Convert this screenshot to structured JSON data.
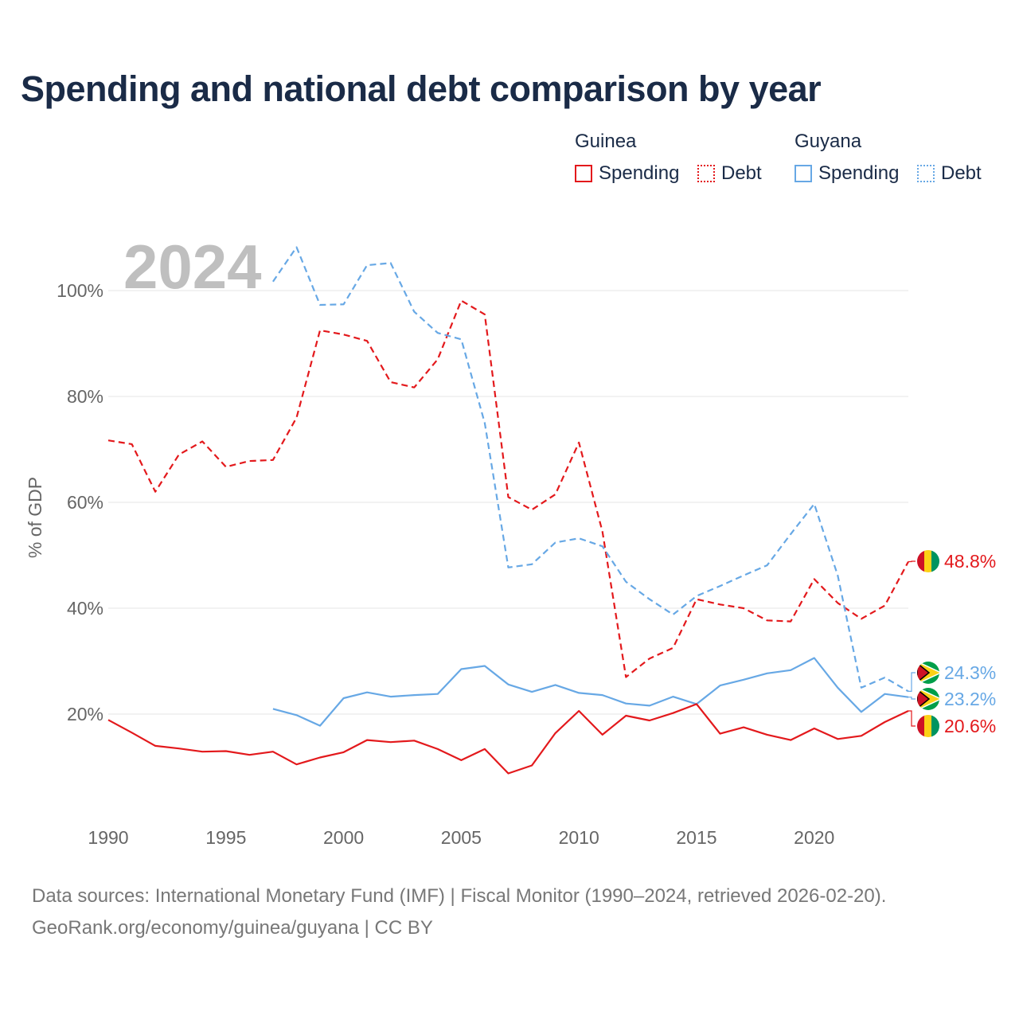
{
  "title": "Spending and national debt comparison by year",
  "legend": {
    "groups": [
      {
        "name": "Guinea",
        "color": "#e3191c",
        "items": [
          "Spending",
          "Debt"
        ]
      },
      {
        "name": "Guyana",
        "color": "#67a8e5",
        "items": [
          "Spending",
          "Debt"
        ]
      }
    ]
  },
  "year_watermark": "2024",
  "footer": {
    "line1": "Data sources: International Monetary Fund (IMF) | Fiscal Monitor (1990–2024, retrieved 2026-02-20).",
    "line2": "GeoRank.org/economy/guinea/guyana | CC BY"
  },
  "chart_data": {
    "type": "line",
    "title": "Spending and national debt comparison by year",
    "xlabel": "",
    "ylabel": "% of GDP",
    "xlim": [
      1990,
      2024
    ],
    "ylim": [
      0,
      110
    ],
    "x_ticks": [
      1990,
      1995,
      2000,
      2005,
      2010,
      2015,
      2020
    ],
    "x_tick_labels": [
      "1990",
      "1995",
      "2000",
      "2005",
      "2010",
      "2015",
      "2020"
    ],
    "y_ticks": [
      20,
      40,
      60,
      80,
      100
    ],
    "y_tick_labels": [
      "20%",
      "40%",
      "60%",
      "80%",
      "100%"
    ],
    "grid": true,
    "series": [
      {
        "name": "Guinea Debt",
        "country": "Guinea",
        "metric": "Debt",
        "color": "#e3191c",
        "dashed": true,
        "end_label": "48.8%",
        "points": [
          [
            1990,
            71.7
          ],
          [
            1991,
            71.0
          ],
          [
            1992,
            62.0
          ],
          [
            1993,
            69.0
          ],
          [
            1994,
            71.5
          ],
          [
            1995,
            66.7
          ],
          [
            1996,
            67.8
          ],
          [
            1997,
            68.0
          ],
          [
            1998,
            76.0
          ],
          [
            1999,
            92.5
          ],
          [
            2000,
            91.7
          ],
          [
            2001,
            90.5
          ],
          [
            2002,
            82.7
          ],
          [
            2003,
            81.7
          ],
          [
            2004,
            87.0
          ],
          [
            2005,
            98.1
          ],
          [
            2006,
            95.5
          ],
          [
            2007,
            61.0
          ],
          [
            2008,
            58.6
          ],
          [
            2009,
            61.5
          ],
          [
            2010,
            71.3
          ],
          [
            2011,
            54.5
          ],
          [
            2012,
            27.0
          ],
          [
            2013,
            30.5
          ],
          [
            2014,
            32.5
          ],
          [
            2015,
            41.7
          ],
          [
            2016,
            40.7
          ],
          [
            2017,
            40.0
          ],
          [
            2018,
            37.7
          ],
          [
            2019,
            37.5
          ],
          [
            2020,
            45.5
          ],
          [
            2021,
            41.0
          ],
          [
            2022,
            38.0
          ],
          [
            2023,
            40.5
          ],
          [
            2024,
            48.8
          ]
        ]
      },
      {
        "name": "Guyana Debt",
        "country": "Guyana",
        "metric": "Debt",
        "color": "#67a8e5",
        "dashed": true,
        "end_label": "24.3%",
        "points": [
          [
            1997,
            101.7
          ],
          [
            1998,
            108.2
          ],
          [
            1999,
            97.3
          ],
          [
            2000,
            97.4
          ],
          [
            2001,
            104.8
          ],
          [
            2002,
            105.2
          ],
          [
            2003,
            96.0
          ],
          [
            2004,
            92.0
          ],
          [
            2005,
            90.8
          ],
          [
            2006,
            75.0
          ],
          [
            2007,
            47.7
          ],
          [
            2008,
            48.3
          ],
          [
            2009,
            52.4
          ],
          [
            2010,
            53.2
          ],
          [
            2011,
            51.7
          ],
          [
            2012,
            45.0
          ],
          [
            2013,
            41.7
          ],
          [
            2014,
            38.8
          ],
          [
            2015,
            42.3
          ],
          [
            2016,
            44.2
          ],
          [
            2017,
            46.2
          ],
          [
            2018,
            48.1
          ],
          [
            2019,
            54.0
          ],
          [
            2020,
            59.7
          ],
          [
            2021,
            46.2
          ],
          [
            2022,
            25.0
          ],
          [
            2023,
            26.9
          ],
          [
            2024,
            24.3
          ]
        ]
      },
      {
        "name": "Guyana Spending",
        "country": "Guyana",
        "metric": "Spending",
        "color": "#67a8e5",
        "dashed": false,
        "end_label": "23.2%",
        "points": [
          [
            1997,
            21.0
          ],
          [
            1998,
            19.8
          ],
          [
            1999,
            17.8
          ],
          [
            2000,
            23.0
          ],
          [
            2001,
            24.1
          ],
          [
            2002,
            23.3
          ],
          [
            2003,
            23.6
          ],
          [
            2004,
            23.8
          ],
          [
            2005,
            28.5
          ],
          [
            2006,
            29.1
          ],
          [
            2007,
            25.6
          ],
          [
            2008,
            24.2
          ],
          [
            2009,
            25.5
          ],
          [
            2010,
            24.0
          ],
          [
            2011,
            23.6
          ],
          [
            2012,
            22.0
          ],
          [
            2013,
            21.6
          ],
          [
            2014,
            23.3
          ],
          [
            2015,
            21.9
          ],
          [
            2016,
            25.4
          ],
          [
            2017,
            26.5
          ],
          [
            2018,
            27.7
          ],
          [
            2019,
            28.3
          ],
          [
            2020,
            30.6
          ],
          [
            2021,
            25.0
          ],
          [
            2022,
            20.4
          ],
          [
            2023,
            23.8
          ],
          [
            2024,
            23.2
          ]
        ]
      },
      {
        "name": "Guinea Spending",
        "country": "Guinea",
        "metric": "Spending",
        "color": "#e3191c",
        "dashed": false,
        "end_label": "20.6%",
        "points": [
          [
            1990,
            18.9
          ],
          [
            1991,
            16.5
          ],
          [
            1992,
            14.0
          ],
          [
            1993,
            13.5
          ],
          [
            1994,
            12.9
          ],
          [
            1995,
            13.0
          ],
          [
            1996,
            12.3
          ],
          [
            1997,
            12.9
          ],
          [
            1998,
            10.5
          ],
          [
            1999,
            11.8
          ],
          [
            2000,
            12.8
          ],
          [
            2001,
            15.1
          ],
          [
            2002,
            14.7
          ],
          [
            2003,
            15.0
          ],
          [
            2004,
            13.4
          ],
          [
            2005,
            11.3
          ],
          [
            2006,
            13.4
          ],
          [
            2007,
            8.8
          ],
          [
            2008,
            10.3
          ],
          [
            2009,
            16.4
          ],
          [
            2010,
            20.6
          ],
          [
            2011,
            16.1
          ],
          [
            2012,
            19.7
          ],
          [
            2013,
            18.8
          ],
          [
            2014,
            20.2
          ],
          [
            2015,
            21.9
          ],
          [
            2016,
            16.3
          ],
          [
            2017,
            17.5
          ],
          [
            2018,
            16.1
          ],
          [
            2019,
            15.1
          ],
          [
            2020,
            17.3
          ],
          [
            2021,
            15.3
          ],
          [
            2022,
            15.9
          ],
          [
            2023,
            18.5
          ],
          [
            2024,
            20.6
          ]
        ]
      }
    ]
  }
}
